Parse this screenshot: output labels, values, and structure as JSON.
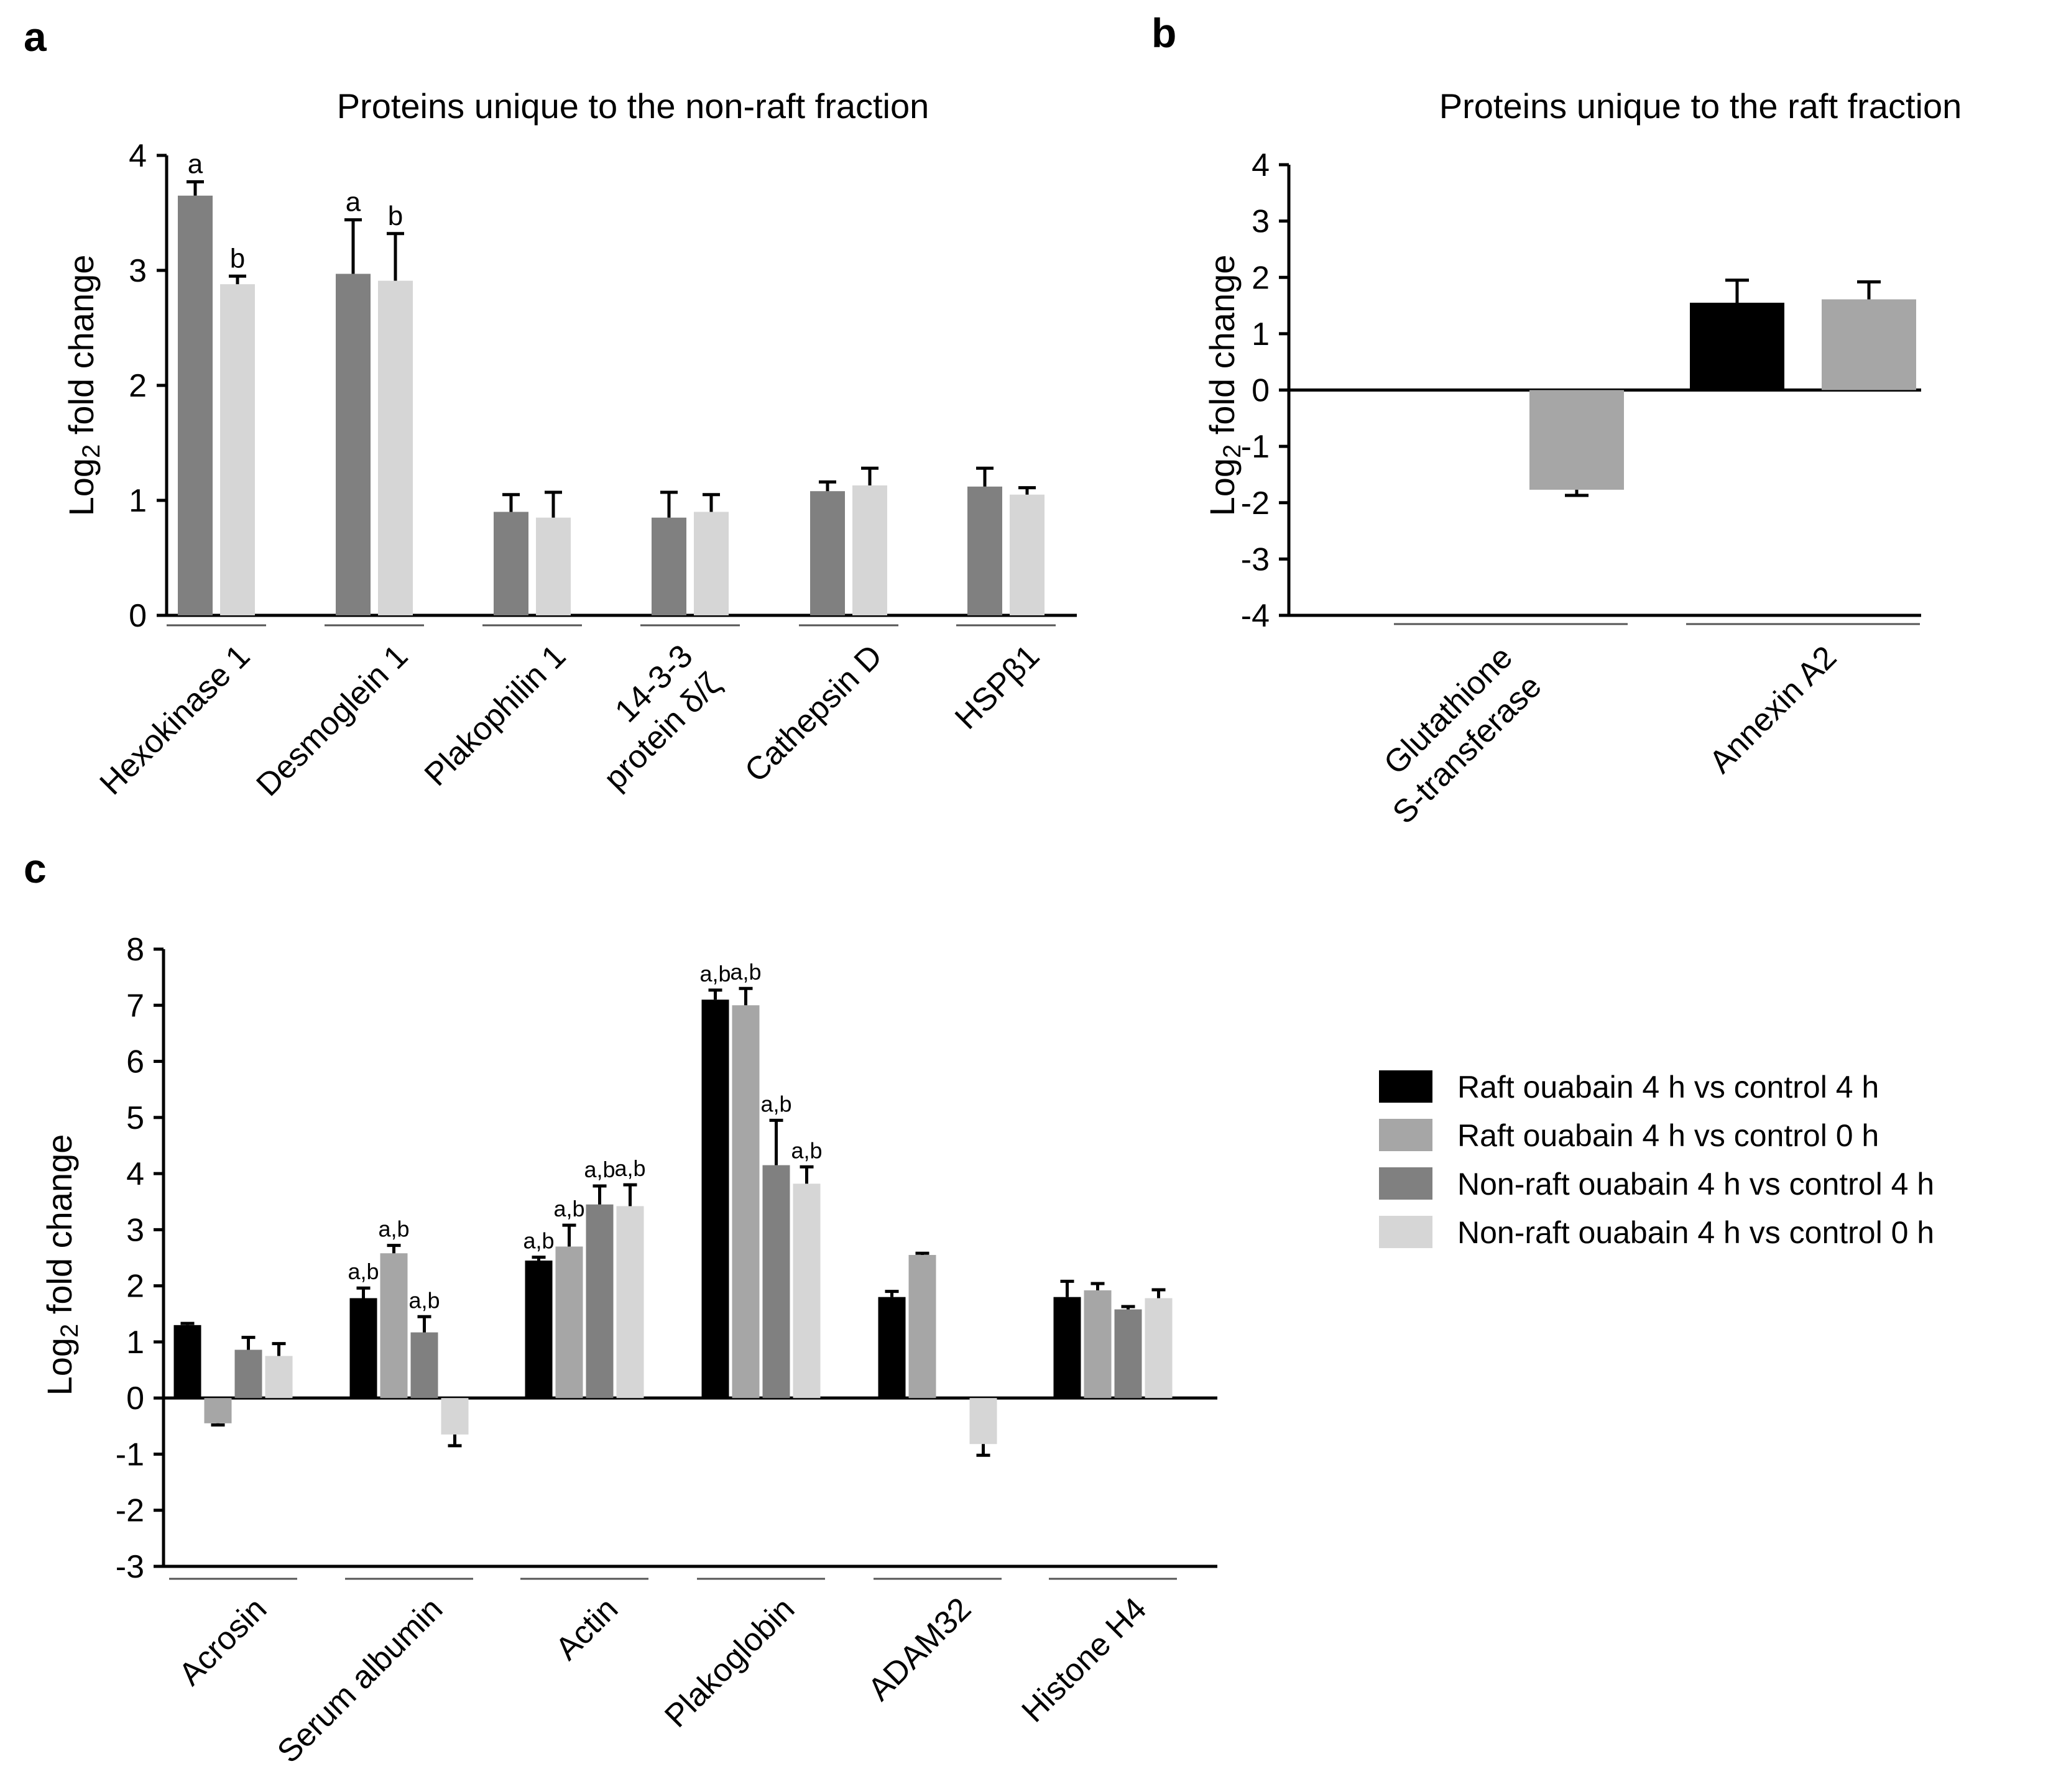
{
  "chart_data": [
    {
      "panel": "a",
      "type": "bar",
      "title": "Proteins unique to the non-raft fraction",
      "ylabel": "Log",
      "ylabel_sub": "2",
      "ylabel_rest": " fold change",
      "ylim": [
        0,
        4
      ],
      "yticks": [
        "0",
        "1",
        "2",
        "3",
        "4"
      ],
      "categories": [
        [
          "Hexokinase 1"
        ],
        [
          "Desmoglein 1"
        ],
        [
          "Plakophilin 1"
        ],
        [
          "14-3-3",
          "protein δ/ζ"
        ],
        [
          "Cathepsin D"
        ],
        [
          "HSPβ1"
        ]
      ],
      "series": [
        {
          "name": "Non-raft ouabain 4 h vs control 4 h",
          "color": "#808080",
          "values": [
            3.65,
            2.97,
            0.9,
            0.85,
            1.08,
            1.12
          ],
          "errors": [
            0.12,
            0.47,
            0.15,
            0.22,
            0.08,
            0.16
          ],
          "annotations": [
            "a",
            "a",
            "",
            "",
            "",
            ""
          ]
        },
        {
          "name": "Non-raft ouabain 4 h vs control 0 h",
          "color": "#d6d6d6",
          "values": [
            2.88,
            2.91,
            0.85,
            0.9,
            1.13,
            1.05
          ],
          "errors": [
            0.07,
            0.41,
            0.22,
            0.15,
            0.15,
            0.06
          ],
          "annotations": [
            "b",
            "b",
            "",
            "",
            "",
            ""
          ]
        }
      ]
    },
    {
      "panel": "b",
      "type": "bar",
      "title": "Proteins unique to the raft fraction",
      "ylabel": "Log",
      "ylabel_sub": "2",
      "ylabel_rest": " fold change",
      "ylim": [
        -4,
        4
      ],
      "yticks": [
        "-4",
        "-3",
        "-2",
        "-1",
        "0",
        "1",
        "2",
        "3",
        "4"
      ],
      "categories": [
        [
          "Glutathione",
          "S-transferase"
        ],
        [
          "Annexin A2"
        ]
      ],
      "series": [
        {
          "name": "Raft ouabain 4 h vs control 4 h",
          "color": "#000000",
          "values": [
            null,
            1.55
          ],
          "errors": [
            null,
            0.4
          ]
        },
        {
          "name": "Raft ouabain 4 h vs control 0 h",
          "color": "#a6a6a6",
          "values": [
            -1.77,
            1.61
          ],
          "errors": [
            0.1,
            0.31
          ]
        }
      ]
    },
    {
      "panel": "c",
      "type": "bar",
      "title": "",
      "ylabel": "Log",
      "ylabel_sub": "2",
      "ylabel_rest": " fold change",
      "ylim": [
        -3,
        8
      ],
      "yticks": [
        "-3",
        "-2",
        "-1",
        "0",
        "1",
        "2",
        "3",
        "4",
        "5",
        "6",
        "7",
        "8"
      ],
      "categories": [
        [
          "Acrosin"
        ],
        [
          "Serum albumin"
        ],
        [
          "Actin"
        ],
        [
          "Plakoglobin"
        ],
        [
          "ADAM32"
        ],
        [
          "Histone H4"
        ]
      ],
      "series": [
        {
          "name": "Raft ouabain 4 h vs control 4 h",
          "color": "#000000",
          "values": [
            1.3,
            1.78,
            2.45,
            7.1,
            1.8,
            1.8
          ],
          "errors": [
            0.03,
            0.18,
            0.06,
            0.17,
            0.1,
            0.28
          ],
          "annotations": [
            "",
            "a,b",
            "a,b",
            "a,b",
            "",
            ""
          ]
        },
        {
          "name": "Raft ouabain 4 h vs control 0 h",
          "color": "#a6a6a6",
          "values": [
            -0.45,
            2.58,
            2.7,
            7.0,
            2.55,
            1.92
          ],
          "errors": [
            0.03,
            0.14,
            0.38,
            0.3,
            0.03,
            0.12
          ],
          "annotations": [
            "",
            "a,b",
            "a,b",
            "a,b",
            "",
            ""
          ]
        },
        {
          "name": "Non-raft ouabain 4 h vs control 4 h",
          "color": "#808080",
          "values": [
            0.86,
            1.17,
            3.45,
            4.15,
            null,
            1.58
          ],
          "errors": [
            0.22,
            0.28,
            0.33,
            0.8,
            null,
            0.05
          ],
          "annotations": [
            "",
            "a,b",
            "a,b",
            "a,b",
            "",
            ""
          ]
        },
        {
          "name": "Non-raft ouabain 4 h vs control 0 h",
          "color": "#d6d6d6",
          "values": [
            0.75,
            -0.65,
            3.42,
            3.82,
            -0.82,
            1.78
          ],
          "errors": [
            0.22,
            0.2,
            0.38,
            0.3,
            0.2,
            0.15
          ],
          "annotations": [
            "",
            "",
            "a,b",
            "a,b",
            "",
            ""
          ]
        }
      ]
    }
  ],
  "legend": [
    {
      "label": "Raft ouabain 4 h vs control 4 h",
      "color": "#000000"
    },
    {
      "label": "Raft ouabain 4 h vs control 0 h",
      "color": "#a6a6a6"
    },
    {
      "label": "Non-raft ouabain 4 h vs control 4 h",
      "color": "#808080"
    },
    {
      "label": "Non-raft ouabain 4 h vs control 0 h",
      "color": "#d6d6d6"
    }
  ]
}
